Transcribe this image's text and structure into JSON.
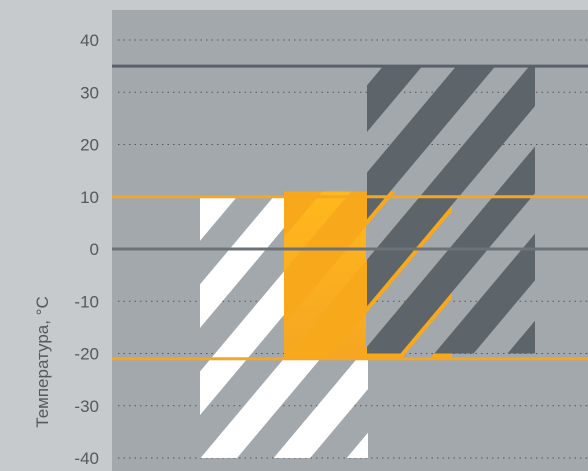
{
  "chart_data": {
    "type": "bar",
    "ylabel": "Температура, °C",
    "ylim": [
      -40,
      40
    ],
    "yticks": [
      40,
      30,
      20,
      10,
      0,
      -10,
      -20,
      -30,
      -40
    ],
    "grid": true,
    "reference_lines": [
      {
        "value": 35,
        "color": "#5a6168"
      },
      {
        "value": 10,
        "color": "#f5a623"
      },
      {
        "value": 0,
        "color": "#6c7378"
      },
      {
        "value": -21,
        "color": "#f5a623"
      }
    ],
    "series": [
      {
        "pattern": "white-stripes",
        "color": "#ffffff",
        "low": -40,
        "high": 10
      },
      {
        "pattern": "orange",
        "color": "#f7a81b",
        "low": -21,
        "high": 11
      },
      {
        "pattern": "dark-stripes",
        "color": "#5d646a",
        "low": -20,
        "high": 35
      }
    ]
  },
  "colors": {
    "page_bg": "#c7cacc",
    "plot_bg": "#a3a8ad",
    "grid": "#55595c",
    "accent": "#f5a623",
    "dark": "#5d646a"
  }
}
